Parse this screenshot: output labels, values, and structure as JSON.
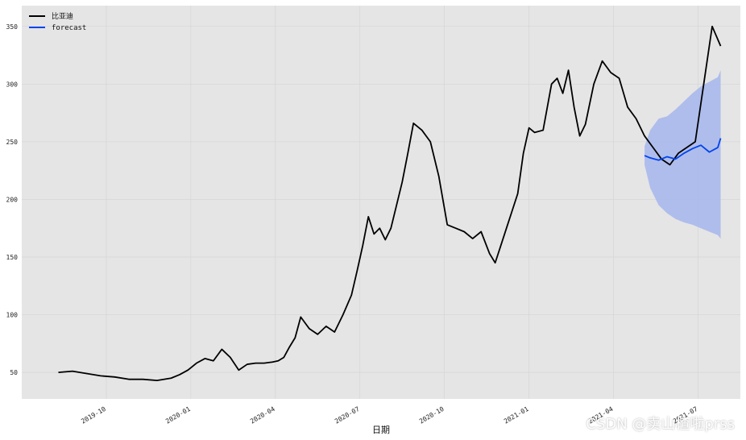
{
  "chart_data": {
    "type": "line",
    "title": "",
    "xlabel": "日期",
    "ylabel": "",
    "x_tick_labels": [
      "2019-10",
      "2020-01",
      "2020-04",
      "2020-07",
      "2020-10",
      "2021-01",
      "2021-04",
      "2021-07"
    ],
    "x_tick_months": [
      3,
      6,
      9,
      12,
      15,
      18,
      21,
      24
    ],
    "xlim_months": [
      0.0,
      25.5
    ],
    "y_ticks": [
      50,
      100,
      150,
      200,
      250,
      300,
      350
    ],
    "ylim": [
      27,
      368
    ],
    "grid": true,
    "legend": "top-left",
    "series": [
      {
        "name": "比亚迪",
        "color": "#000000",
        "x_months": [
          1.3,
          1.8,
          2.3,
          2.8,
          3.3,
          3.8,
          4.3,
          4.8,
          5.3,
          5.6,
          5.9,
          6.2,
          6.5,
          6.8,
          7.1,
          7.4,
          7.7,
          8.0,
          8.3,
          8.6,
          8.9,
          9.1,
          9.3,
          9.5,
          9.7,
          9.9,
          10.2,
          10.5,
          10.8,
          11.1,
          11.4,
          11.7,
          11.9,
          12.1,
          12.3,
          12.5,
          12.7,
          12.9,
          13.1,
          13.3,
          13.5,
          13.7,
          13.9,
          14.2,
          14.5,
          14.8,
          15.1,
          15.4,
          15.7,
          16.0,
          16.3,
          16.6,
          16.8,
          17.0,
          17.2,
          17.4,
          17.6,
          17.8,
          18.0,
          18.2,
          18.5,
          18.8,
          19.0,
          19.2,
          19.4,
          19.6,
          19.8,
          20.0,
          20.3,
          20.6,
          20.9,
          21.2,
          21.5,
          21.8,
          22.1,
          22.4,
          22.7,
          23.0,
          23.3,
          23.6,
          23.9,
          24.2,
          24.5,
          24.8
        ],
        "values": [
          50,
          51,
          49,
          47,
          46,
          44,
          44,
          43,
          45,
          48,
          52,
          58,
          62,
          60,
          70,
          63,
          52,
          57,
          58,
          58,
          59,
          60,
          63,
          72,
          80,
          98,
          88,
          83,
          90,
          85,
          100,
          117,
          138,
          160,
          185,
          170,
          175,
          165,
          175,
          195,
          215,
          240,
          266,
          260,
          250,
          220,
          178,
          175,
          172,
          166,
          172,
          153,
          145,
          160,
          175,
          190,
          205,
          240,
          262,
          258,
          260,
          300,
          305,
          292,
          312,
          280,
          255,
          265,
          300,
          320,
          310,
          305,
          280,
          270,
          255,
          245,
          235,
          230,
          240,
          245,
          250,
          300,
          350,
          333
        ]
      },
      {
        "name": "forecast",
        "color": "#0044ee",
        "x_months": [
          22.1,
          22.3,
          22.6,
          22.9,
          23.2,
          23.5,
          23.8,
          24.1,
          24.4,
          24.7,
          24.8
        ],
        "values": [
          238,
          236,
          234,
          237,
          235,
          240,
          244,
          247,
          241,
          245,
          253
        ],
        "band_upper": [
          246,
          260,
          270,
          272,
          278,
          285,
          292,
          298,
          302,
          306,
          312
        ],
        "band_lower": [
          230,
          210,
          195,
          188,
          183,
          180,
          178,
          175,
          172,
          169,
          166
        ],
        "band_color": "#a9b8ec"
      }
    ]
  },
  "watermark": "CSDN @卖山楂啦prss"
}
